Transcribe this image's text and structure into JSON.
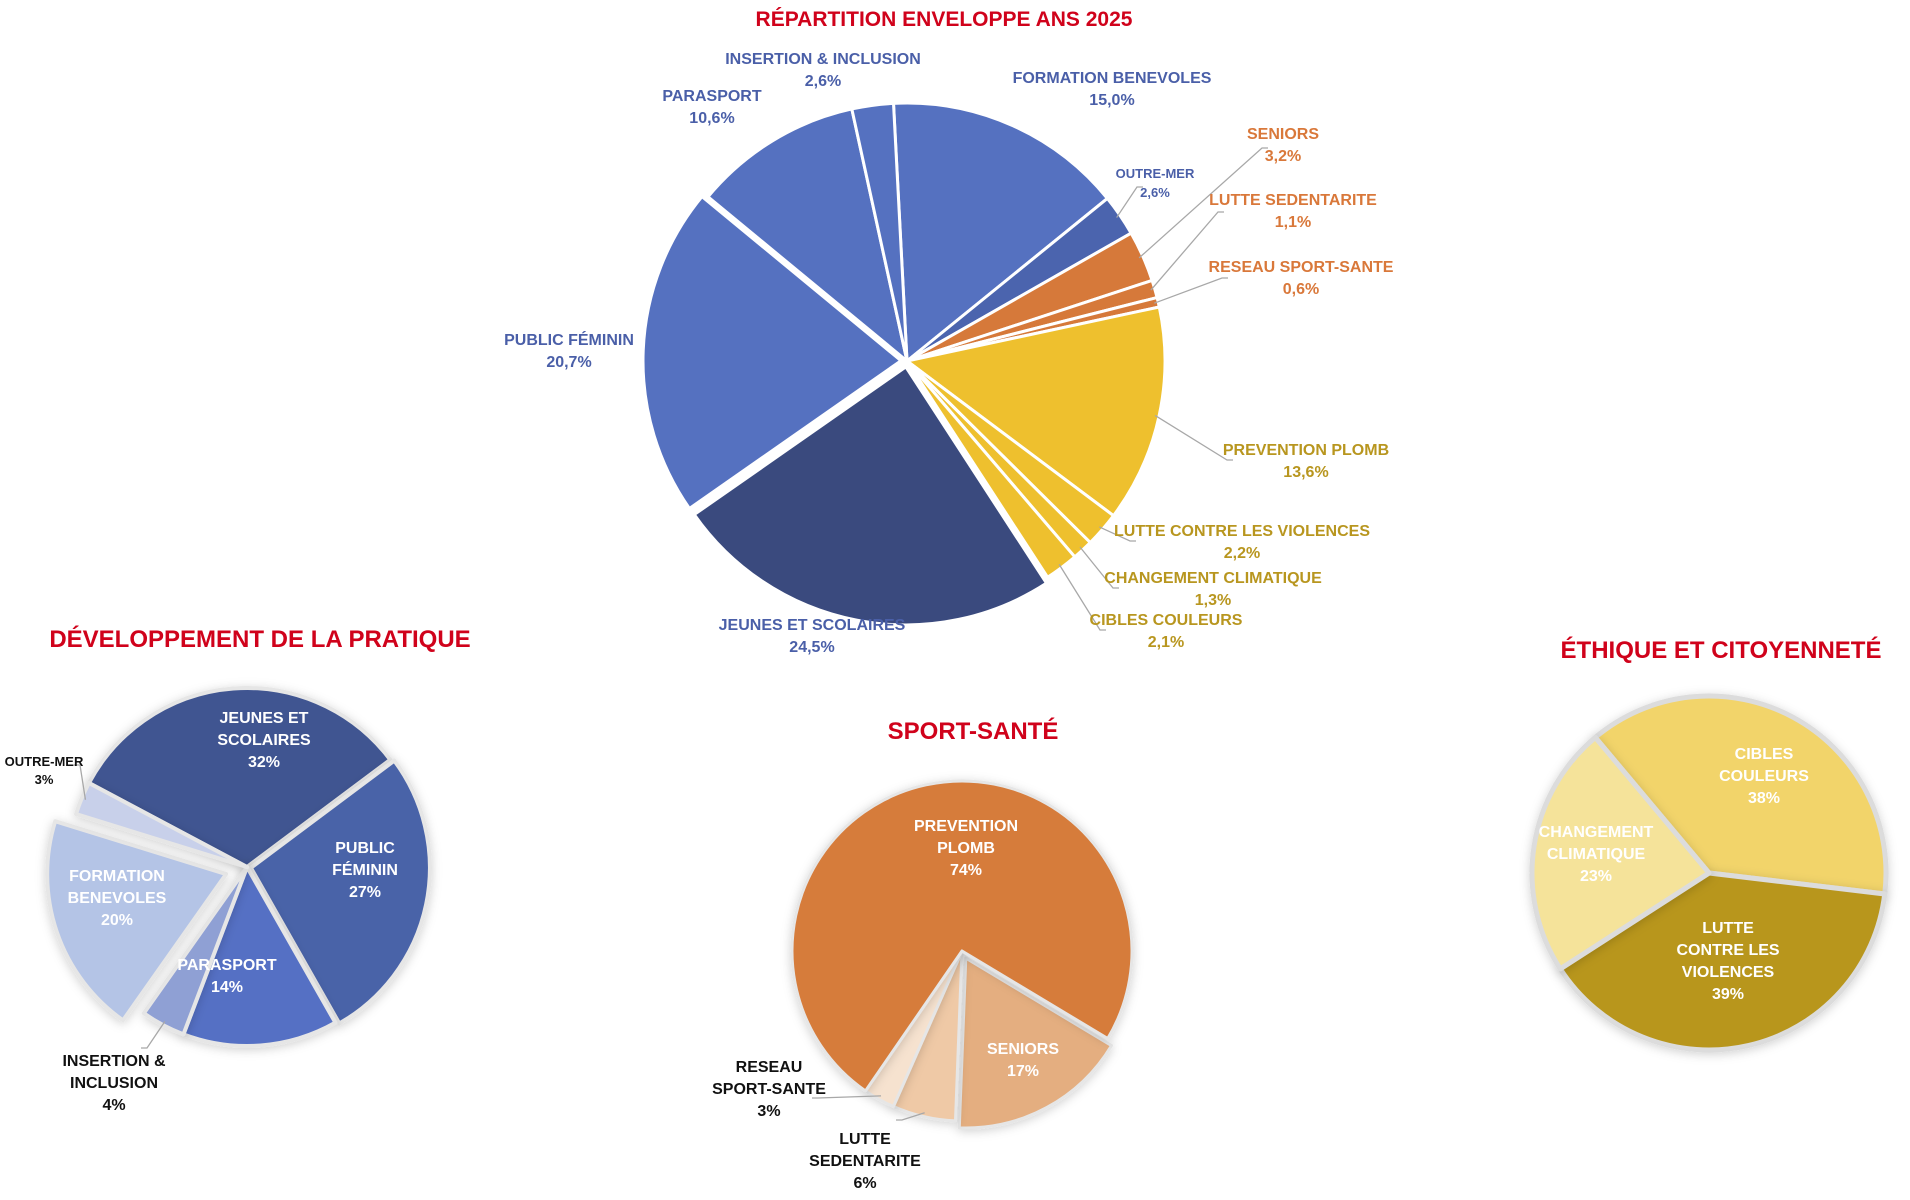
{
  "chart_data": [
    {
      "type": "pie",
      "title": "RÉPARTITION ENVELOPPE ANS 2025",
      "slices": [
        {
          "label": "FORMATION BENEVOLES",
          "value": 15.0,
          "display": "15,0%",
          "color": "#5571C0"
        },
        {
          "label": "OUTRE-MER",
          "value": 2.6,
          "display": "2,6%",
          "color": "#4B64AE"
        },
        {
          "label": "SENIORS",
          "value": 3.2,
          "display": "3,2%",
          "color": "#D6793A"
        },
        {
          "label": "LUTTE SEDENTARITE",
          "value": 1.1,
          "display": "1,1%",
          "color": "#D6793A"
        },
        {
          "label": "RESEAU SPORT-SANTE",
          "value": 0.6,
          "display": "0,6%",
          "color": "#D6793A"
        },
        {
          "label": "PREVENTION PLOMB",
          "value": 13.6,
          "display": "13,6%",
          "color": "#EEC02E"
        },
        {
          "label": "LUTTE CONTRE LES VIOLENCES",
          "value": 2.2,
          "display": "2,2%",
          "color": "#EEC02E"
        },
        {
          "label": "CHANGEMENT CLIMATIQUE",
          "value": 1.3,
          "display": "1,3%",
          "color": "#EEC02E"
        },
        {
          "label": "CIBLES COULEURS",
          "value": 2.1,
          "display": "2,1%",
          "color": "#EEC02E"
        },
        {
          "label": "JEUNES ET SCOLAIRES",
          "value": 24.5,
          "display": "24,5%",
          "color": "#3A4A7E"
        },
        {
          "label": "PUBLIC FÉMININ",
          "value": 20.7,
          "display": "20,7%",
          "color": "#5571C0"
        },
        {
          "label": "PARASPORT",
          "value": 10.6,
          "display": "10,6%",
          "color": "#5571C0"
        },
        {
          "label": "INSERTION & INCLUSION",
          "value": 2.6,
          "display": "2,6%",
          "color": "#5571C0"
        }
      ]
    },
    {
      "type": "pie",
      "title": "DÉVELOPPEMENT DE LA PRATIQUE",
      "slices": [
        {
          "label": "JEUNES ET SCOLAIRES",
          "lines": [
            "JEUNES ET",
            "SCOLAIRES"
          ],
          "value": 32,
          "display": "32%",
          "color": "#3F5591"
        },
        {
          "label": "PUBLIC FÉMININ",
          "lines": [
            "PUBLIC",
            "FÉMININ"
          ],
          "value": 27,
          "display": "27%",
          "color": "#4963A8"
        },
        {
          "label": "PARASPORT",
          "lines": [
            "PARASPORT"
          ],
          "value": 14,
          "display": "14%",
          "color": "#5470C4"
        },
        {
          "label": "INSERTION & INCLUSION",
          "lines": [
            "INSERTION &",
            "INCLUSION"
          ],
          "value": 4,
          "display": "4%",
          "color": "#8FA0D4"
        },
        {
          "label": "FORMATION BENEVOLES",
          "lines": [
            "FORMATION",
            "BENEVOLES"
          ],
          "value": 20,
          "display": "20%",
          "color": "#B4C4E6"
        },
        {
          "label": "OUTRE-MER",
          "lines": [
            "OUTRE-MER"
          ],
          "value": 3,
          "display": "3%",
          "color": "#C8D0EA"
        }
      ]
    },
    {
      "type": "pie",
      "title": "SPORT-SANTÉ",
      "slices": [
        {
          "label": "SENIORS",
          "lines": [
            "SENIORS"
          ],
          "value": 17,
          "display": "17%",
          "color": "#E4AE80"
        },
        {
          "label": "LUTTE SEDENTARITE",
          "lines": [
            "LUTTE",
            "SEDENTARITE"
          ],
          "value": 6,
          "display": "6%",
          "color": "#EFC9A6"
        },
        {
          "label": "RESEAU SPORT-SANTE",
          "lines": [
            "RESEAU",
            "SPORT-SANTE"
          ],
          "value": 3,
          "display": "3%",
          "color": "#F6E2CF"
        },
        {
          "label": "PREVENTION PLOMB",
          "lines": [
            "PREVENTION",
            "PLOMB"
          ],
          "value": 74,
          "display": "74%",
          "color": "#D67B3A"
        }
      ]
    },
    {
      "type": "pie",
      "title": "ÉTHIQUE ET CITOYENNETÉ",
      "slices": [
        {
          "label": "CIBLES COULEURS",
          "lines": [
            "CIBLES",
            "COULEURS"
          ],
          "value": 38,
          "display": "38%",
          "color": "#F2D46A"
        },
        {
          "label": "LUTTE CONTRE LES VIOLENCES",
          "lines": [
            "LUTTE",
            "CONTRE LES",
            "VIOLENCES"
          ],
          "value": 39,
          "display": "39%",
          "color": "#B8961F"
        },
        {
          "label": "CHANGEMENT CLIMATIQUE",
          "lines": [
            "CHANGEMENT",
            "CLIMATIQUE"
          ],
          "value": 23,
          "display": "23%",
          "color": "#F5E39A"
        }
      ]
    }
  ]
}
